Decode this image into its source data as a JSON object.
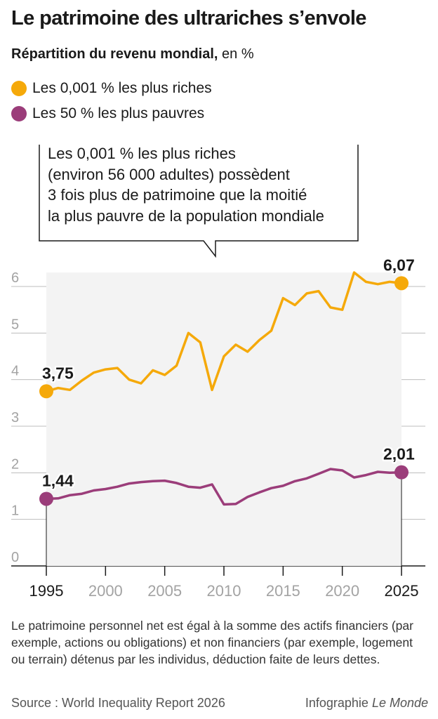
{
  "header": {
    "title": "Le patrimoine des ultrariches s’envole",
    "subtitle_bold": "Répartition du revenu mondial,",
    "subtitle_rest": " en %"
  },
  "legend": [
    {
      "label": "Les 0,001 % les plus riches",
      "color": "#f5a90a"
    },
    {
      "label": "Les 50 % les plus pauvres",
      "color": "#9b3d7a"
    }
  ],
  "callout": {
    "lines": [
      "Les 0,001 % les plus riches",
      "(environ 56 000 adultes) possèdent",
      "3 fois plus de patrimoine que la moitié",
      "la plus pauvre de la population mondiale"
    ]
  },
  "chart_data": {
    "type": "line",
    "title": "Le patrimoine des ultrariches s’envole",
    "xlabel": "",
    "ylabel": "Répartition du revenu mondial, en %",
    "xlim": [
      1995,
      2025
    ],
    "ylim": [
      0,
      6.5
    ],
    "grid": true,
    "y_ticks": [
      "0",
      "1",
      "2",
      "3",
      "4",
      "5",
      "6"
    ],
    "x_ticks": [
      "1995",
      "2000",
      "2005",
      "2010",
      "2015",
      "2020",
      "2025"
    ],
    "x_ticks_highlighted": [
      "1995",
      "2025"
    ],
    "x": [
      1995,
      1996,
      1997,
      1998,
      1999,
      2000,
      2001,
      2002,
      2003,
      2004,
      2005,
      2006,
      2007,
      2008,
      2009,
      2010,
      2011,
      2012,
      2013,
      2014,
      2015,
      2016,
      2017,
      2018,
      2019,
      2020,
      2021,
      2022,
      2023,
      2024,
      2025
    ],
    "series": [
      {
        "name": "Les 0,001 % les plus riches",
        "color": "#f5a90a",
        "values": [
          3.75,
          3.82,
          3.78,
          3.98,
          4.15,
          4.22,
          4.25,
          4.0,
          3.92,
          4.2,
          4.1,
          4.3,
          5.0,
          4.8,
          3.78,
          4.5,
          4.75,
          4.6,
          4.85,
          5.05,
          5.75,
          5.6,
          5.85,
          5.9,
          5.55,
          5.5,
          6.3,
          6.1,
          6.05,
          6.1,
          6.07
        ],
        "start_label": "3,75",
        "end_label": "6,07"
      },
      {
        "name": "Les 50 % les plus pauvres",
        "color": "#9b3d7a",
        "values": [
          1.44,
          1.45,
          1.52,
          1.55,
          1.62,
          1.65,
          1.7,
          1.77,
          1.8,
          1.82,
          1.83,
          1.78,
          1.7,
          1.68,
          1.75,
          1.32,
          1.33,
          1.48,
          1.58,
          1.67,
          1.72,
          1.82,
          1.88,
          1.98,
          2.08,
          2.05,
          1.9,
          1.95,
          2.02,
          2.0,
          2.01
        ],
        "start_label": "1,44",
        "end_label": "2,01"
      }
    ]
  },
  "footnote": "Le patrimoine personnel net est égal à la somme des actifs financiers (par exemple, actions ou obligations) et non financiers (par exemple, logement ou terrain) détenus par les individus, déduction faite de leurs dettes.",
  "source": "Source : World Inequality Report 2026",
  "credit_prefix": "Infographie ",
  "credit_brand": "Le Monde"
}
